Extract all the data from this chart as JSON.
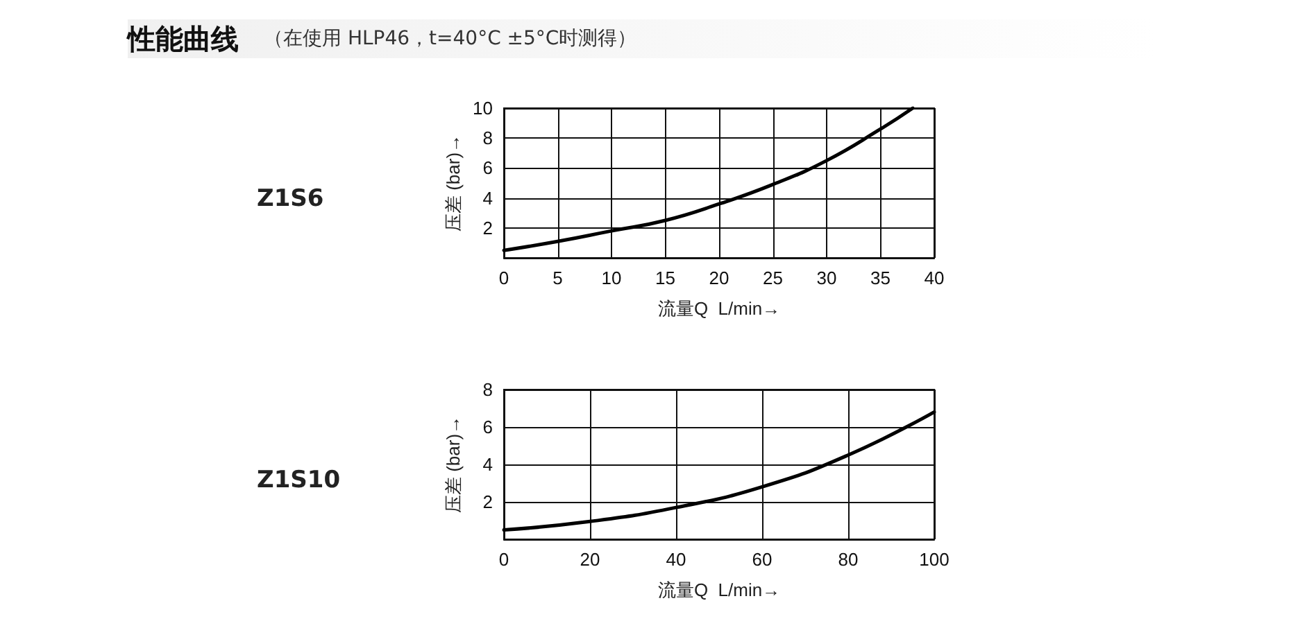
{
  "chart_data": [
    {
      "type": "other",
      "title": "性能曲线",
      "subtitle": "（在使用 HLP46，t=40°C ±5°C时测得）"
    },
    {
      "type": "line",
      "annotations": [
        "Z1S6"
      ],
      "xlabel": "流量Q  L/min→",
      "ylabel": "压差 (bar)→",
      "x": [
        0,
        5,
        10,
        15,
        20,
        25,
        30,
        35,
        38
      ],
      "series": [
        {
          "color": "#000000",
          "values": [
            0.5,
            1.1,
            1.8,
            2.5,
            3.6,
            4.9,
            6.5,
            8.6,
            10
          ]
        }
      ],
      "xlim": [
        0,
        40
      ],
      "xticks": [
        0,
        5,
        10,
        15,
        20,
        25,
        30,
        35,
        40
      ],
      "ylim": [
        0,
        10
      ],
      "yticks": [
        2,
        4,
        6,
        8,
        10
      ],
      "grid": true,
      "marker": "none",
      "line_style": "solid"
    },
    {
      "type": "line",
      "annotations": [
        "Z1S10"
      ],
      "xlabel": "流量Q  L/min→",
      "ylabel": "压差 (bar)→",
      "x": [
        0,
        20,
        40,
        60,
        80,
        100
      ],
      "series": [
        {
          "color": "#000000",
          "values": [
            0.5,
            0.95,
            1.7,
            2.8,
            4.5,
            6.8
          ]
        }
      ],
      "xlim": [
        0,
        100
      ],
      "xticks": [
        0,
        20,
        40,
        60,
        80,
        100
      ],
      "ylim": [
        0,
        8
      ],
      "yticks": [
        2,
        4,
        6,
        8
      ],
      "grid": true,
      "marker": "none",
      "line_style": "solid"
    }
  ]
}
